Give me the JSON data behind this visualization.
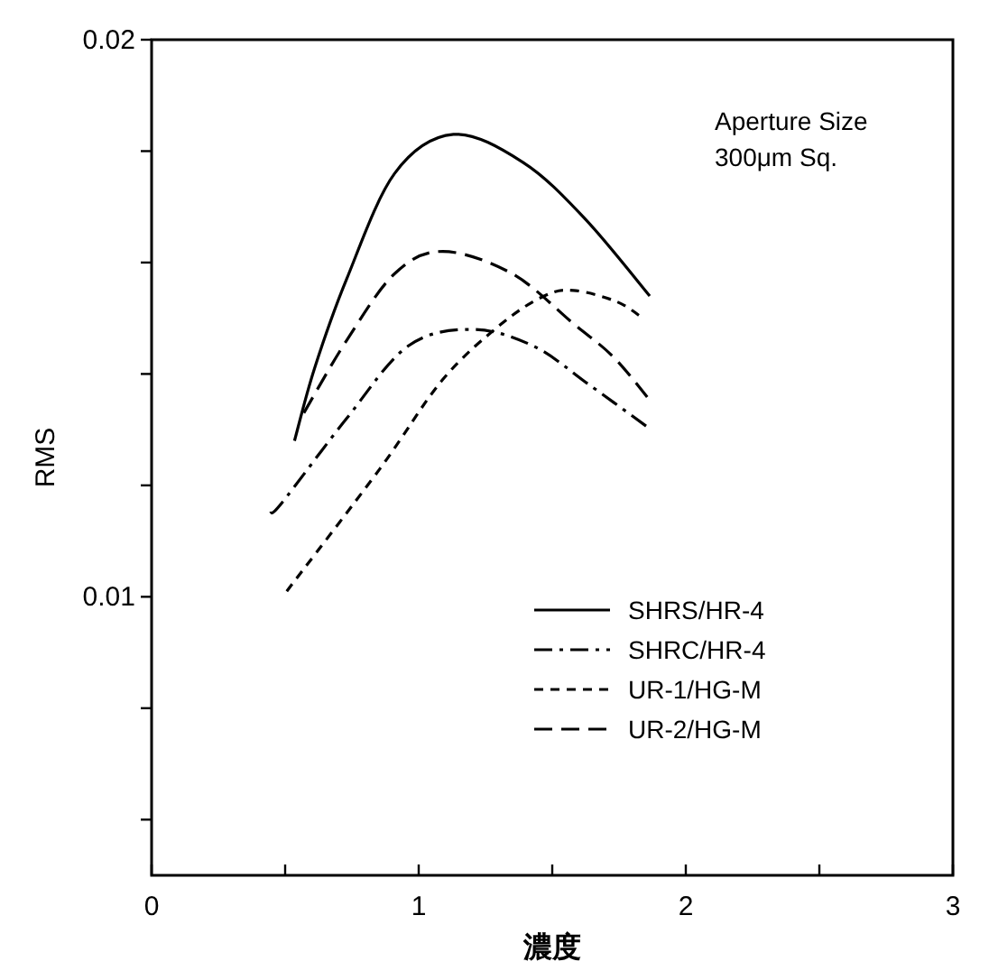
{
  "chart_data": {
    "type": "line",
    "xlabel": "濃度",
    "ylabel": "RMS",
    "annotations": [
      "Aperture Size\n300μm Sq."
    ],
    "xlim": [
      0,
      3
    ],
    "xticks": [
      0,
      {
        "value": 0.5,
        "label": null
      },
      1,
      {
        "value": 1.5,
        "label": null
      },
      2,
      {
        "value": 2.5,
        "label": null
      },
      3
    ],
    "ylim": [
      0.005,
      0.02
    ],
    "yticks": [
      {
        "value": 0.006,
        "label": null
      },
      {
        "value": 0.008,
        "label": null
      },
      0.01,
      {
        "value": 0.012,
        "label": null
      },
      {
        "value": 0.014,
        "label": null
      },
      {
        "value": 0.016,
        "label": null
      },
      {
        "value": 0.018,
        "label": null
      },
      0.02
    ],
    "grid": false,
    "legend": "right",
    "marker": "none",
    "series": [
      {
        "name": "SHRS/HR-4",
        "color": "#000000",
        "line_style": "solid",
        "x": [
          0.535,
          0.61,
          0.73,
          0.91,
          1.13,
          1.39,
          1.62,
          1.865
        ],
        "values": [
          0.0128,
          0.0141,
          0.0157,
          0.0176,
          0.0183,
          0.0178,
          0.0168,
          0.0154
        ]
      },
      {
        "name": "SHRC/HR-4",
        "color": "#000000",
        "line_style": "dashdot",
        "x": [
          0.444,
          0.49,
          0.73,
          0.96,
          1.2,
          1.43,
          1.64,
          1.87
        ],
        "values": [
          0.0115,
          0.0117,
          0.0132,
          0.0145,
          0.0148,
          0.0145,
          0.0138,
          0.013
        ]
      },
      {
        "name": "UR-1/HG-M",
        "color": "#000000",
        "line_style": "dotted",
        "x": [
          0.506,
          0.855,
          1.09,
          1.31,
          1.47,
          1.58,
          1.74,
          1.84
        ],
        "values": [
          0.0101,
          0.0123,
          0.0139,
          0.0149,
          0.0154,
          0.0155,
          0.0153,
          0.015
        ]
      },
      {
        "name": "UR-2/HG-M",
        "color": "#000000",
        "line_style": "dashed",
        "x": [
          0.57,
          0.73,
          0.91,
          1.09,
          1.35,
          1.58,
          1.73,
          1.87
        ],
        "values": [
          0.0133,
          0.0146,
          0.0158,
          0.0162,
          0.0158,
          0.0149,
          0.0143,
          0.0135
        ]
      }
    ]
  }
}
